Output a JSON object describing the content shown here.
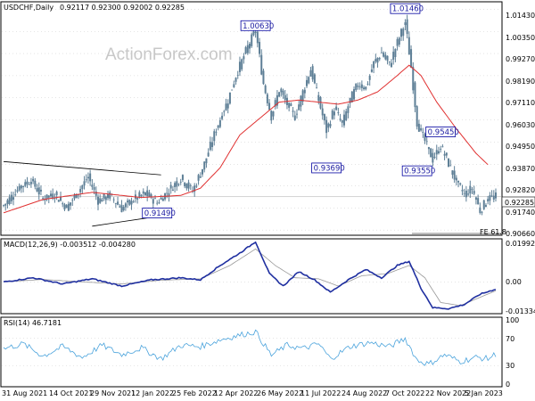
{
  "colors": {
    "candle": "#5e7f96",
    "ma": "#e03030",
    "macd": "#1f2fa0",
    "macd_signal": "#999999",
    "rsi": "#4aa3dc",
    "label_border": "#0000a0",
    "trendline": "#000000",
    "grid": "#bcbcbc"
  },
  "chart_data": [
    {
      "type": "candlestick",
      "title": "USDCHF,Daily",
      "ohlc_header": "0.92117 0.92300 0.92002 0.92285",
      "current_price_label": "0.92285",
      "fe_label": "FE 61.8",
      "watermark": "ActionForex.com",
      "ylim": [
        0.9045,
        1.0175
      ],
      "y_ticks": [
        "1.01430",
        "1.00350",
        "0.99270",
        "0.98190",
        "0.97110",
        "0.96030",
        "0.94950",
        "0.93870",
        "0.92820",
        "0.91740",
        "0.90660"
      ],
      "x_tick_labels": [
        "31 Aug 2021",
        "14 Oct 2021",
        "29 Nov 2021",
        "12 Jan 2022",
        "25 Feb 2022",
        "12 Apr 2022",
        "26 May 2022",
        "11 Jul 2022",
        "24 Aug 2022",
        "7 Oct 2022",
        "22 Nov 2022",
        "5 Jan 2023"
      ],
      "close_anchors": [
        {
          "bar": 0,
          "value": 0.9185
        },
        {
          "bar": 8,
          "value": 0.9275
        },
        {
          "bar": 14,
          "value": 0.931
        },
        {
          "bar": 20,
          "value": 0.922
        },
        {
          "bar": 26,
          "value": 0.924
        },
        {
          "bar": 32,
          "value": 0.9175
        },
        {
          "bar": 38,
          "value": 0.9255
        },
        {
          "bar": 43,
          "value": 0.9325
        },
        {
          "bar": 48,
          "value": 0.921
        },
        {
          "bar": 54,
          "value": 0.9235
        },
        {
          "bar": 60,
          "value": 0.917
        },
        {
          "bar": 66,
          "value": 0.9215
        },
        {
          "bar": 72,
          "value": 0.9245
        },
        {
          "bar": 78,
          "value": 0.92
        },
        {
          "bar": 84,
          "value": 0.926
        },
        {
          "bar": 90,
          "value": 0.932
        },
        {
          "bar": 96,
          "value": 0.9255
        },
        {
          "bar": 102,
          "value": 0.939
        },
        {
          "bar": 108,
          "value": 0.956
        },
        {
          "bar": 114,
          "value": 0.97
        },
        {
          "bar": 118,
          "value": 0.982
        },
        {
          "bar": 124,
          "value": 0.996
        },
        {
          "bar": 128,
          "value": 1.004
        },
        {
          "bar": 132,
          "value": 0.978
        },
        {
          "bar": 136,
          "value": 0.962
        },
        {
          "bar": 140,
          "value": 0.975
        },
        {
          "bar": 144,
          "value": 0.968
        },
        {
          "bar": 148,
          "value": 0.962
        },
        {
          "bar": 152,
          "value": 0.974
        },
        {
          "bar": 156,
          "value": 0.985
        },
        {
          "bar": 160,
          "value": 0.97
        },
        {
          "bar": 164,
          "value": 0.955
        },
        {
          "bar": 168,
          "value": 0.966
        },
        {
          "bar": 172,
          "value": 0.958
        },
        {
          "bar": 176,
          "value": 0.97
        },
        {
          "bar": 180,
          "value": 0.978
        },
        {
          "bar": 184,
          "value": 0.976
        },
        {
          "bar": 188,
          "value": 0.988
        },
        {
          "bar": 192,
          "value": 0.993
        },
        {
          "bar": 196,
          "value": 0.987
        },
        {
          "bar": 200,
          "value": 0.998
        },
        {
          "bar": 204,
          "value": 1.008
        },
        {
          "bar": 207,
          "value": 0.986
        },
        {
          "bar": 210,
          "value": 0.959
        },
        {
          "bar": 214,
          "value": 0.95
        },
        {
          "bar": 218,
          "value": 0.941
        },
        {
          "bar": 222,
          "value": 0.9475
        },
        {
          "bar": 226,
          "value": 0.939
        },
        {
          "bar": 230,
          "value": 0.93
        },
        {
          "bar": 234,
          "value": 0.924
        },
        {
          "bar": 238,
          "value": 0.927
        },
        {
          "bar": 242,
          "value": 0.916
        },
        {
          "bar": 246,
          "value": 0.922
        },
        {
          "bar": 250,
          "value": 0.9229
        }
      ],
      "moving_average_anchors": [
        {
          "bar": 0,
          "value": 0.915
        },
        {
          "bar": 20,
          "value": 0.9215
        },
        {
          "bar": 45,
          "value": 0.925
        },
        {
          "bar": 70,
          "value": 0.9225
        },
        {
          "bar": 90,
          "value": 0.9235
        },
        {
          "bar": 100,
          "value": 0.927
        },
        {
          "bar": 110,
          "value": 0.937
        },
        {
          "bar": 120,
          "value": 0.953
        },
        {
          "bar": 130,
          "value": 0.961
        },
        {
          "bar": 140,
          "value": 0.969
        },
        {
          "bar": 150,
          "value": 0.97
        },
        {
          "bar": 160,
          "value": 0.969
        },
        {
          "bar": 170,
          "value": 0.968
        },
        {
          "bar": 180,
          "value": 0.97
        },
        {
          "bar": 190,
          "value": 0.974
        },
        {
          "bar": 200,
          "value": 0.982
        },
        {
          "bar": 206,
          "value": 0.987
        },
        {
          "bar": 212,
          "value": 0.982
        },
        {
          "bar": 220,
          "value": 0.969
        },
        {
          "bar": 230,
          "value": 0.956
        },
        {
          "bar": 240,
          "value": 0.944
        },
        {
          "bar": 246,
          "value": 0.9385
        }
      ],
      "price_labels": [
        {
          "text": "1.00630",
          "bar": 128,
          "value": 1.0063
        },
        {
          "text": "1.01460",
          "bar": 204,
          "value": 1.0146
        },
        {
          "text": "0.93690",
          "bar": 164,
          "value": 0.9369
        },
        {
          "text": "0.95450",
          "bar": 222,
          "value": 0.9545
        },
        {
          "text": "0.93550",
          "bar": 210,
          "value": 0.9355
        },
        {
          "text": "0.91490",
          "bar": 78,
          "value": 0.9149
        }
      ],
      "trendlines": [
        {
          "start": {
            "bar": 0,
            "value": 0.94
          },
          "end": {
            "bar": 80,
            "value": 0.9335
          }
        },
        {
          "start": {
            "bar": 45,
            "value": 0.9085
          },
          "end": {
            "bar": 80,
            "value": 0.9135
          }
        }
      ]
    },
    {
      "type": "line",
      "title": "MACD(12,26,9) -0.003512 -0.004280",
      "ylim": [
        -0.015,
        0.0205
      ],
      "y_ticks": [
        "0.01992",
        "0.00",
        "-0.01334"
      ],
      "macd_anchors": [
        {
          "bar": 0,
          "value": 0.0
        },
        {
          "bar": 15,
          "value": 0.002
        },
        {
          "bar": 30,
          "value": -0.001
        },
        {
          "bar": 45,
          "value": 0.0015
        },
        {
          "bar": 60,
          "value": -0.002
        },
        {
          "bar": 75,
          "value": 0.001
        },
        {
          "bar": 90,
          "value": 0.002
        },
        {
          "bar": 100,
          "value": 0.001
        },
        {
          "bar": 110,
          "value": 0.008
        },
        {
          "bar": 120,
          "value": 0.014
        },
        {
          "bar": 128,
          "value": 0.0195
        },
        {
          "bar": 135,
          "value": 0.004
        },
        {
          "bar": 142,
          "value": -0.002
        },
        {
          "bar": 150,
          "value": 0.005
        },
        {
          "bar": 158,
          "value": 0.001
        },
        {
          "bar": 166,
          "value": -0.005
        },
        {
          "bar": 175,
          "value": 0.001
        },
        {
          "bar": 184,
          "value": 0.006
        },
        {
          "bar": 192,
          "value": 0.002
        },
        {
          "bar": 200,
          "value": 0.008
        },
        {
          "bar": 206,
          "value": 0.01
        },
        {
          "bar": 212,
          "value": -0.003
        },
        {
          "bar": 218,
          "value": -0.0125
        },
        {
          "bar": 226,
          "value": -0.013
        },
        {
          "bar": 234,
          "value": -0.011
        },
        {
          "bar": 242,
          "value": -0.006
        },
        {
          "bar": 250,
          "value": -0.0035
        }
      ],
      "signal_anchors": [
        {
          "bar": 0,
          "value": 0.0
        },
        {
          "bar": 20,
          "value": 0.0012
        },
        {
          "bar": 40,
          "value": 0.0
        },
        {
          "bar": 60,
          "value": -0.001
        },
        {
          "bar": 80,
          "value": 0.0008
        },
        {
          "bar": 100,
          "value": 0.0015
        },
        {
          "bar": 115,
          "value": 0.008
        },
        {
          "bar": 128,
          "value": 0.016
        },
        {
          "bar": 138,
          "value": 0.008
        },
        {
          "bar": 148,
          "value": 0.002
        },
        {
          "bar": 160,
          "value": 0.0015
        },
        {
          "bar": 170,
          "value": -0.002
        },
        {
          "bar": 182,
          "value": 0.003
        },
        {
          "bar": 195,
          "value": 0.004
        },
        {
          "bar": 206,
          "value": 0.008
        },
        {
          "bar": 214,
          "value": 0.002
        },
        {
          "bar": 222,
          "value": -0.01
        },
        {
          "bar": 232,
          "value": -0.0115
        },
        {
          "bar": 242,
          "value": -0.0075
        },
        {
          "bar": 250,
          "value": -0.0043
        }
      ]
    },
    {
      "type": "line",
      "title": "RSI(14) 46.7181",
      "ylim": [
        0,
        100
      ],
      "y_ticks": [
        "100",
        "70",
        "30",
        "0"
      ],
      "rsi_anchors": [
        {
          "bar": 0,
          "value": 55
        },
        {
          "bar": 10,
          "value": 62
        },
        {
          "bar": 20,
          "value": 44
        },
        {
          "bar": 30,
          "value": 58
        },
        {
          "bar": 40,
          "value": 42
        },
        {
          "bar": 50,
          "value": 60
        },
        {
          "bar": 60,
          "value": 46
        },
        {
          "bar": 70,
          "value": 56
        },
        {
          "bar": 80,
          "value": 40
        },
        {
          "bar": 90,
          "value": 60
        },
        {
          "bar": 100,
          "value": 58
        },
        {
          "bar": 110,
          "value": 68
        },
        {
          "bar": 120,
          "value": 75
        },
        {
          "bar": 128,
          "value": 80
        },
        {
          "bar": 136,
          "value": 45
        },
        {
          "bar": 144,
          "value": 60
        },
        {
          "bar": 152,
          "value": 55
        },
        {
          "bar": 160,
          "value": 62
        },
        {
          "bar": 166,
          "value": 40
        },
        {
          "bar": 176,
          "value": 58
        },
        {
          "bar": 186,
          "value": 64
        },
        {
          "bar": 196,
          "value": 58
        },
        {
          "bar": 204,
          "value": 70
        },
        {
          "bar": 210,
          "value": 38
        },
        {
          "bar": 216,
          "value": 32
        },
        {
          "bar": 224,
          "value": 46
        },
        {
          "bar": 232,
          "value": 36
        },
        {
          "bar": 240,
          "value": 42
        },
        {
          "bar": 246,
          "value": 40
        },
        {
          "bar": 250,
          "value": 47
        }
      ]
    }
  ]
}
